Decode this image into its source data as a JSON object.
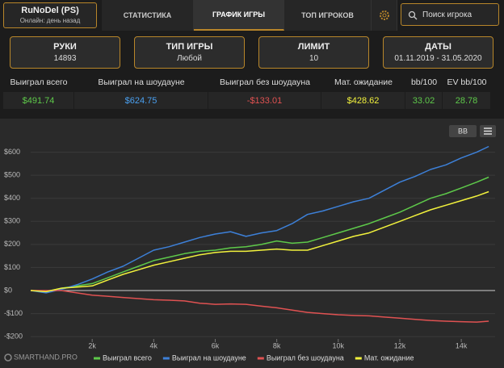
{
  "header": {
    "user": "RuNoDel (PS)",
    "status": "Онлайн: день назад",
    "tabs": [
      "СТАТИСТИКА",
      "ГРАФИК ИГРЫ",
      "ТОП ИГРОКОВ"
    ],
    "search": "Поиск игрока"
  },
  "cards": [
    {
      "label": "РУКИ",
      "value": "14893"
    },
    {
      "label": "ТИП ИГРЫ",
      "value": "Любой"
    },
    {
      "label": "ЛИМИТ",
      "value": "10"
    },
    {
      "label": "ДАТЫ",
      "value": "01.11.2019 - 31.05.2020"
    }
  ],
  "stats": {
    "headers": [
      "Выиграл всего",
      "Выиграл на шоудауне",
      "Выиграл без шоудауна",
      "Мат. ожидание",
      "bb/100",
      "EV bb/100"
    ],
    "values": [
      "$491.74",
      "$624.75",
      "-$133.01",
      "$428.62",
      "33.02",
      "28.78"
    ]
  },
  "chart_toolbar": {
    "unit_button": "BB"
  },
  "branding": "SMARTHAND.PRO",
  "chart_data": {
    "type": "line",
    "x": [
      0,
      500,
      1000,
      1500,
      2000,
      2500,
      3000,
      3500,
      4000,
      4500,
      5000,
      5500,
      6000,
      6500,
      7000,
      7500,
      8000,
      8500,
      9000,
      9500,
      10000,
      10500,
      11000,
      11500,
      12000,
      12500,
      13000,
      13500,
      14000,
      14500,
      14893
    ],
    "series": [
      {
        "name": "Выиграл всего",
        "color": "#5ec94a",
        "values": [
          0,
          -5,
          10,
          20,
          30,
          55,
          80,
          105,
          130,
          145,
          160,
          170,
          175,
          185,
          190,
          200,
          215,
          205,
          210,
          230,
          250,
          270,
          290,
          315,
          340,
          370,
          400,
          420,
          445,
          470,
          491.74
        ]
      },
      {
        "name": "Выиграл на шоудауне",
        "color": "#3d80d8",
        "values": [
          0,
          -10,
          5,
          25,
          50,
          80,
          105,
          140,
          175,
          190,
          210,
          230,
          245,
          255,
          235,
          250,
          260,
          290,
          330,
          345,
          365,
          385,
          400,
          435,
          470,
          495,
          525,
          545,
          575,
          600,
          624.75
        ]
      },
      {
        "name": "Выиграл без шоудауна",
        "color": "#e05252",
        "values": [
          0,
          0,
          0,
          -10,
          -20,
          -25,
          -30,
          -35,
          -40,
          -42,
          -45,
          -55,
          -60,
          -58,
          -60,
          -68,
          -75,
          -85,
          -95,
          -100,
          -105,
          -108,
          -110,
          -115,
          -120,
          -125,
          -130,
          -133,
          -135,
          -137,
          -133.01
        ]
      },
      {
        "name": "Мат. ожидание",
        "color": "#f2f23c",
        "values": [
          0,
          -5,
          10,
          15,
          20,
          45,
          70,
          90,
          110,
          125,
          140,
          155,
          165,
          170,
          170,
          175,
          180,
          175,
          175,
          195,
          215,
          235,
          250,
          275,
          300,
          325,
          350,
          370,
          390,
          410,
          428.62
        ]
      }
    ],
    "xlim": [
      0,
      15100
    ],
    "xticks": [
      {
        "value": 2000,
        "label": "2k"
      },
      {
        "value": 4000,
        "label": "4k"
      },
      {
        "value": 6000,
        "label": "6k"
      },
      {
        "value": 8000,
        "label": "8k"
      },
      {
        "value": 10000,
        "label": "10k"
      },
      {
        "value": 12000,
        "label": "12k"
      },
      {
        "value": 14000,
        "label": "14k"
      }
    ],
    "ylim": [
      -210,
      700
    ],
    "yticks": [
      {
        "value": -200,
        "label": "-$200"
      },
      {
        "value": -100,
        "label": "-$100"
      },
      {
        "value": 0,
        "label": "$0"
      },
      {
        "value": 100,
        "label": "$100"
      },
      {
        "value": 200,
        "label": "$200"
      },
      {
        "value": 300,
        "label": "$300"
      },
      {
        "value": 400,
        "label": "$400"
      },
      {
        "value": 500,
        "label": "$500"
      },
      {
        "value": 600,
        "label": "$600"
      }
    ],
    "grid": true
  }
}
